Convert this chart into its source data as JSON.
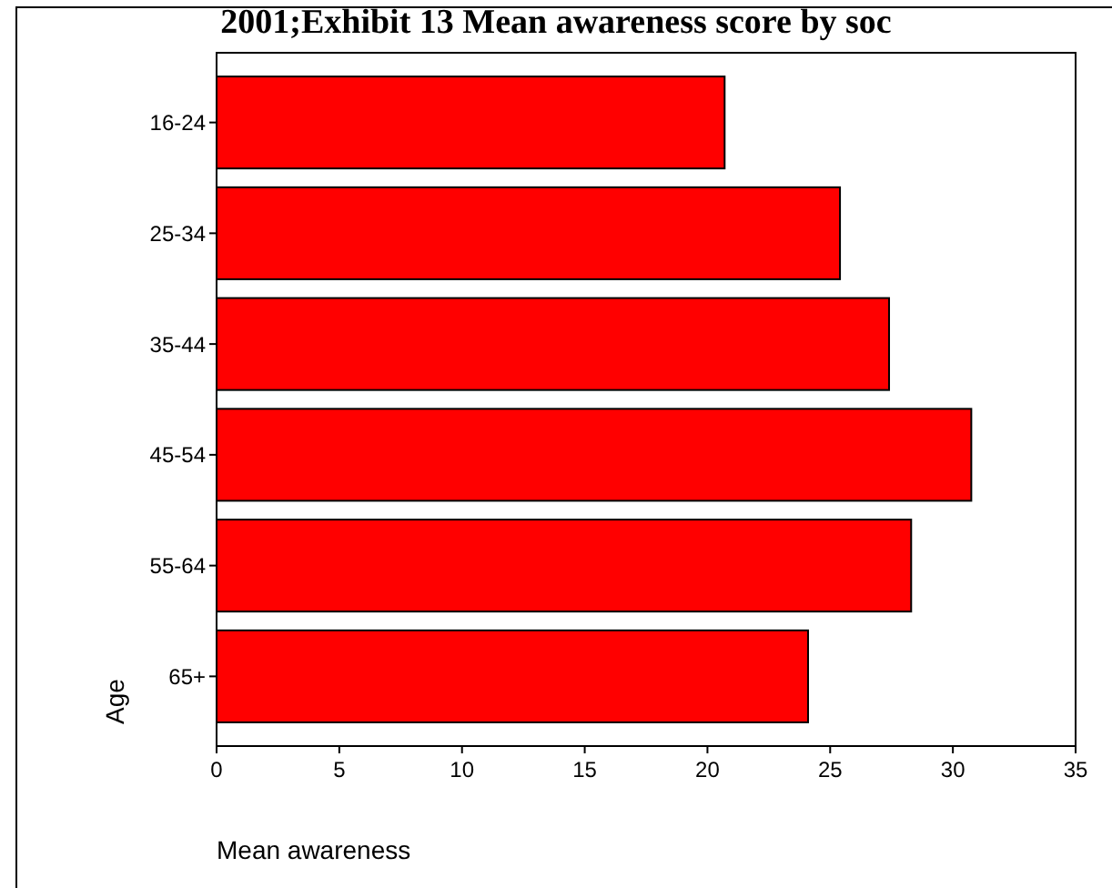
{
  "chart_data": {
    "type": "bar",
    "orientation": "horizontal",
    "title": "2001;Exhibit 13 Mean awareness score by soc",
    "xlabel": "Mean awareness",
    "ylabel": "Age",
    "categories": [
      "16-24",
      "25-34",
      "35-44",
      "45-54",
      "55-64",
      "65+"
    ],
    "values": [
      20.7,
      25.4,
      27.4,
      30.75,
      28.3,
      24.1
    ],
    "color": "#ff0000",
    "xlim": [
      0,
      35
    ],
    "xticks": [
      0,
      5,
      10,
      15,
      20,
      25,
      30,
      35
    ],
    "grid": false
  }
}
